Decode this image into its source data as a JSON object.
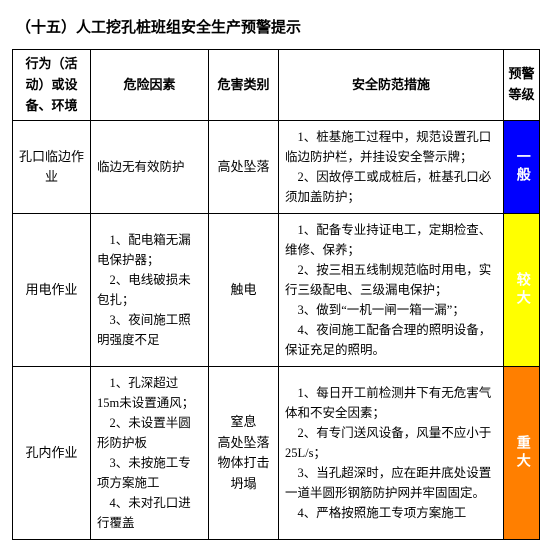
{
  "title": "（十五）人工挖孔桩班组安全生产预警提示",
  "columns": {
    "c1": "行为（活动）或设备、环境",
    "c2": "危险因素",
    "c3": "危害类别",
    "c4": "安全防范措施",
    "c5": "预警等级"
  },
  "rows": [
    {
      "activity": "孔口临边作业",
      "risk": "临边无有效防护",
      "hazard": "高处坠落",
      "measures": "　1、桩基施工过程中，规范设置孔口临边防护栏，并挂设安全警示牌；\n　2、因故停工或成桩后，桩基孔口必须加盖防护；",
      "level": "一般",
      "level_bg": "#0000ff"
    },
    {
      "activity": "用电作业",
      "risk": "　1、配电箱无漏电保护器；\n　2、电线破损未包扎；\n　3、夜间施工照明强度不足",
      "hazard": "触电",
      "measures": "　1、配备专业持证电工，定期检查、维修、保养；\n　2、按三相五线制规范临时用电，实行三级配电、三级漏电保护；\n　3、做到“一机一闸一箱一漏”；\n　4、夜间施工配备合理的照明设备，保证充足的照明。",
      "level": "较大",
      "level_bg": "#ffff00"
    },
    {
      "activity": "孔内作业",
      "risk": "　1、孔深超过 15m未设置通风；\n　2、未设置半圆形防护板\n　3、未按施工专项方案施工\n　4、未对孔口进行覆盖",
      "hazard": "窒息\n高处坠落\n物体打击\n坍塌",
      "measures": "　1、每日开工前检测井下有无危害气体和不安全因素；\n　2、有专门送风设备，风量不应小于 25L/s；\n　3、当孔超深时，应在距井底处设置一道半圆形钢筋防护网并牢固固定。\n　4、严格按照施工专项方案施工",
      "level": "重大",
      "level_bg": "#ff7f00"
    }
  ]
}
